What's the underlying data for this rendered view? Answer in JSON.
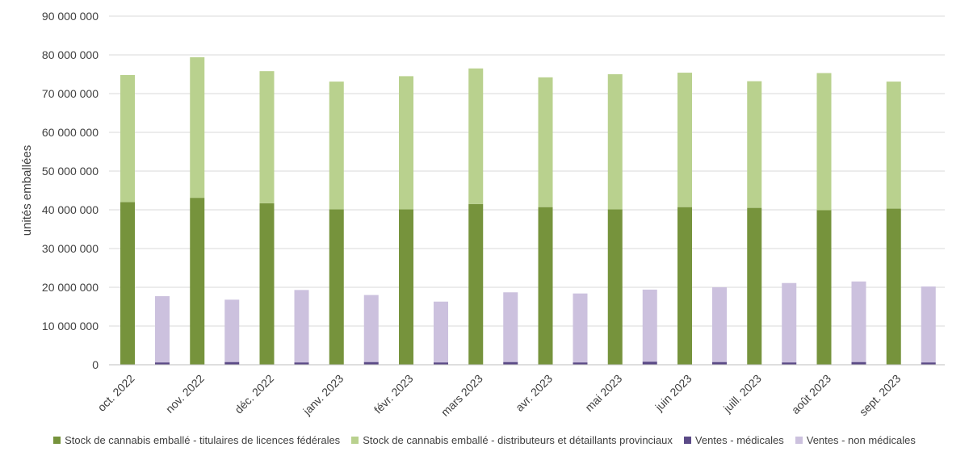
{
  "chart_data": {
    "type": "bar",
    "subtype": "stacked-clustered",
    "ylabel": "unités emballées",
    "ylim": [
      0,
      90000000
    ],
    "yticks": [
      {
        "value": 0,
        "label": "0"
      },
      {
        "value": 10000000,
        "label": "10 000 000"
      },
      {
        "value": 20000000,
        "label": "20 000 000"
      },
      {
        "value": 30000000,
        "label": "30 000 000"
      },
      {
        "value": 40000000,
        "label": "40 000 000"
      },
      {
        "value": 50000000,
        "label": "50 000 000"
      },
      {
        "value": 60000000,
        "label": "60 000 000"
      },
      {
        "value": 70000000,
        "label": "70 000 000"
      },
      {
        "value": 80000000,
        "label": "80 000 000"
      },
      {
        "value": 90000000,
        "label": "90 000 000"
      }
    ],
    "grid": true,
    "legend_position": "bottom",
    "categories": [
      "oct. 2022",
      "nov. 2022",
      "déc. 2022",
      "janv. 2023",
      "févr. 2023",
      "mars 2023",
      "avr. 2023",
      "mai 2023",
      "juin 2023",
      "juill. 2023",
      "août 2023",
      "sept. 2023"
    ],
    "series": [
      {
        "name": "Stock de cannabis emballé - titulaires de licences fédérales",
        "color": "#76933c",
        "stack": "stock",
        "values": [
          42000000,
          43100000,
          41700000,
          40100000,
          40100000,
          41500000,
          40700000,
          40100000,
          40700000,
          40500000,
          39900000,
          40300000
        ]
      },
      {
        "name": "Stock de cannabis emballé - distributeurs et détaillants provinciaux",
        "color": "#b9d18e",
        "stack": "stock",
        "values": [
          32800000,
          36300000,
          34100000,
          33000000,
          34400000,
          35000000,
          33500000,
          34900000,
          34700000,
          32700000,
          35400000,
          32800000
        ]
      },
      {
        "name": "Ventes - médicales",
        "color": "#5b4a87",
        "stack": "ventes",
        "values": [
          600000,
          700000,
          600000,
          700000,
          600000,
          700000,
          600000,
          800000,
          700000,
          600000,
          700000,
          600000
        ]
      },
      {
        "name": "Ventes - non médicales",
        "color": "#ccc1de",
        "stack": "ventes",
        "values": [
          17100000,
          16100000,
          18700000,
          17300000,
          15700000,
          18000000,
          17800000,
          18600000,
          19300000,
          20500000,
          20800000,
          19600000
        ]
      }
    ]
  }
}
